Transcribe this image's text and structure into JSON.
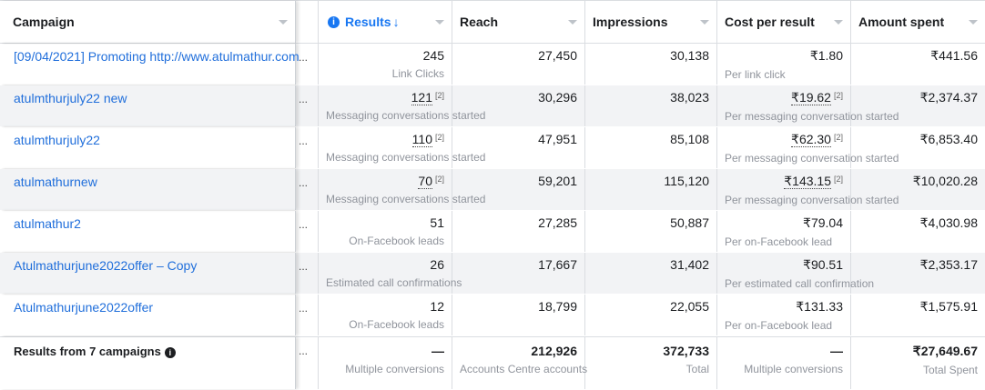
{
  "headers": {
    "campaign": "Campaign",
    "results": "Results",
    "sort_arrow": "↓",
    "reach": "Reach",
    "impressions": "Impressions",
    "cost": "Cost per result",
    "amount": "Amount spent"
  },
  "rows": [
    {
      "name": "[09/04/2021] Promoting http://www.atulmathur.com",
      "more": "...",
      "results": "245",
      "results_note": "",
      "results_sub": "Link Clicks",
      "reach": "27,450",
      "impressions": "30,138",
      "cost": "₹1.80",
      "cost_note": "",
      "cost_sub": "Per link click",
      "amount": "₹441.56"
    },
    {
      "name": "atulmthurjuly22 new",
      "more": "...",
      "results": "121",
      "results_note": "[2]",
      "results_sub": "Messaging conversations started",
      "reach": "30,296",
      "impressions": "38,023",
      "cost": "₹19.62",
      "cost_note": "[2]",
      "cost_sub": "Per messaging conversation started",
      "amount": "₹2,374.37"
    },
    {
      "name": "atulmthurjuly22",
      "more": "...",
      "results": "110",
      "results_note": "[2]",
      "results_sub": "Messaging conversations started",
      "reach": "47,951",
      "impressions": "85,108",
      "cost": "₹62.30",
      "cost_note": "[2]",
      "cost_sub": "Per messaging conversation started",
      "amount": "₹6,853.40"
    },
    {
      "name": "atulmathurnew",
      "more": "...",
      "results": "70",
      "results_note": "[2]",
      "results_sub": "Messaging conversations started",
      "reach": "59,201",
      "impressions": "115,120",
      "cost": "₹143.15",
      "cost_note": "[2]",
      "cost_sub": "Per messaging conversation started",
      "amount": "₹10,020.28"
    },
    {
      "name": "atulmathur2",
      "more": "...",
      "results": "51",
      "results_note": "",
      "results_sub": "On-Facebook leads",
      "reach": "27,285",
      "impressions": "50,887",
      "cost": "₹79.04",
      "cost_note": "",
      "cost_sub": "Per on-Facebook lead",
      "amount": "₹4,030.98"
    },
    {
      "name": "Atulmathurjune2022offer – Copy",
      "more": "...",
      "results": "26",
      "results_note": "",
      "results_sub": "Estimated call confirmations",
      "reach": "17,667",
      "impressions": "31,402",
      "cost": "₹90.51",
      "cost_note": "",
      "cost_sub": "Per estimated call confirmation",
      "amount": "₹2,353.17"
    },
    {
      "name": "Atulmathurjune2022offer",
      "more": "...",
      "results": "12",
      "results_note": "",
      "results_sub": "On-Facebook leads",
      "reach": "18,799",
      "impressions": "22,055",
      "cost": "₹131.33",
      "cost_note": "",
      "cost_sub": "Per on-Facebook lead",
      "amount": "₹1,575.91"
    }
  ],
  "footer": {
    "label": "Results from 7 campaigns",
    "more": "...",
    "results": "—",
    "results_sub": "Multiple conversions",
    "reach": "212,926",
    "reach_sub": "Accounts Centre accounts",
    "impressions": "372,733",
    "impressions_sub": "Total",
    "cost": "—",
    "cost_sub": "Multiple conversions",
    "amount": "₹27,649.67",
    "amount_sub": "Total Spent"
  },
  "icons": {
    "results_info": "info-icon",
    "footer_info": "info-icon",
    "sort": "arrow-down-icon",
    "column_menu": "caret-down-icon"
  },
  "colors": {
    "link": "#216fdb",
    "accent": "#1877f2",
    "alt_row": "#f2f3f5"
  }
}
